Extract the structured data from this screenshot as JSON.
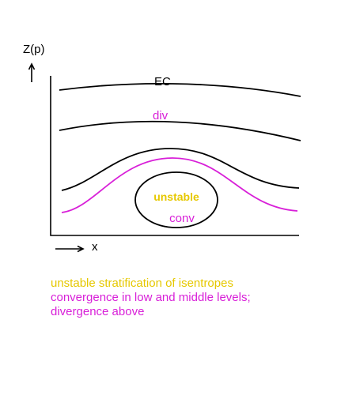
{
  "colors": {
    "black": "#000000",
    "magenta": "#d81fd8",
    "yellow": "#e6c800"
  },
  "axes": {
    "y_label": "Z(p)",
    "x_label": "x"
  },
  "labels": {
    "top_line": "EC",
    "upper_divergence": "div",
    "unstable_core": "unstable",
    "convergence": "conv"
  },
  "caption": {
    "line1": "unstable stratification of isentropes",
    "line2": "convergence in low and middle levels;",
    "line3": "divergence above"
  }
}
